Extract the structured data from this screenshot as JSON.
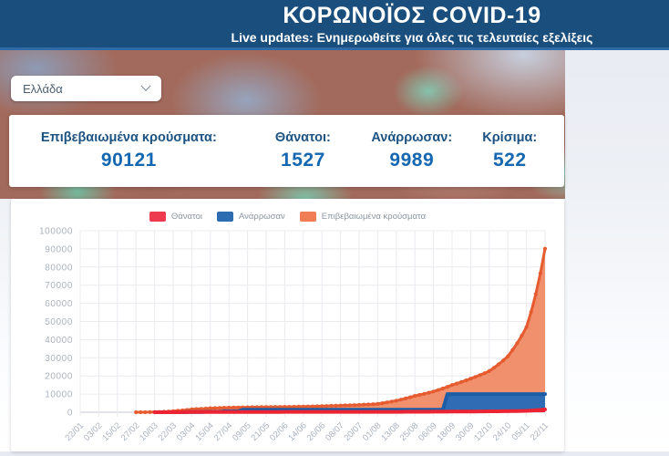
{
  "header": {
    "title": "ΚΟΡΩΝΟΪΟΣ COVID-19",
    "subtitle": "Live updates: Ενημερωθείτε για όλες τις τελευταίες εξελίξεις"
  },
  "country_select": {
    "value": "Ελλάδα"
  },
  "stats": {
    "confirmed": {
      "label": "Επιβεβαιωμένα κρούσματα:",
      "value": "90121"
    },
    "deaths": {
      "label": "Θάνατοι:",
      "value": "1527"
    },
    "recovered": {
      "label": "Ανάρρωσαν:",
      "value": "9989"
    },
    "critical": {
      "label": "Κρίσιμα:",
      "value": "522"
    }
  },
  "colors": {
    "header_bg": "#1a4e7d",
    "stat_label_blue": "#1d5382",
    "stat_value_blue": "#1467b0",
    "deaths_red": "#ec2333",
    "recovered_blue": "#2e6cb2",
    "confirmed_orange": "#e65c30",
    "confirmed_fill": "#f0906c",
    "axis_text": "#a9b2bf"
  },
  "chart_data": {
    "type": "area",
    "title": "",
    "xlabel": "",
    "ylabel": "",
    "ylim": [
      0,
      100000
    ],
    "yticks": [
      0,
      10000,
      20000,
      30000,
      40000,
      50000,
      60000,
      70000,
      80000,
      90000,
      100000
    ],
    "grid": true,
    "legend_position": "top",
    "categories": [
      "22/01",
      "03/02",
      "15/02",
      "27/02",
      "10/03",
      "22/03",
      "03/04",
      "15/04",
      "27/04",
      "09/05",
      "21/05",
      "02/06",
      "14/06",
      "26/06",
      "08/07",
      "20/07",
      "01/08",
      "13/08",
      "25/08",
      "06/09",
      "18/09",
      "30/09",
      "12/10",
      "24/10",
      "05/11",
      "22/11"
    ],
    "series": [
      {
        "name": "Θάνατοι",
        "swatch_color": "#ee3a4e",
        "line_color": "#ec2333",
        "fill_color": "#ec2333",
        "line_width": 4,
        "markers": false,
        "interp": "smooth",
        "values": [
          0,
          0,
          0,
          0,
          1,
          15,
          79,
          105,
          136,
          151,
          166,
          179,
          183,
          191,
          193,
          200,
          206,
          221,
          242,
          284,
          331,
          391,
          482,
          559,
          749,
          1527
        ]
      },
      {
        "name": "Ανάρρωσαν",
        "swatch_color": "#2e6cb2",
        "line_color": "#1d5da6",
        "fill_color": "#2f6cb3",
        "line_width": 4,
        "markers": false,
        "interp": "step",
        "values": [
          0,
          0,
          0,
          0,
          0,
          8,
          78,
          269,
          577,
          1374,
          1374,
          1374,
          1374,
          1374,
          1374,
          1374,
          1374,
          1374,
          1374,
          1374,
          9989,
          9989,
          9989,
          9989,
          9989,
          9989
        ]
      },
      {
        "name": "Επιβεβαιωμένα κρούσματα",
        "swatch_color": "#f07d55",
        "line_color": "#e65c30",
        "fill_color": "#f0906c",
        "line_width": 3,
        "markers": true,
        "interp": "smooth",
        "values": [
          0,
          0,
          0,
          3,
          89,
          624,
          1613,
          2192,
          2534,
          2710,
          2853,
          2941,
          3112,
          3343,
          3672,
          4012,
          4587,
          6381,
          8987,
          11386,
          14978,
          18475,
          22652,
          30782,
          46892,
          90121
        ]
      }
    ]
  }
}
